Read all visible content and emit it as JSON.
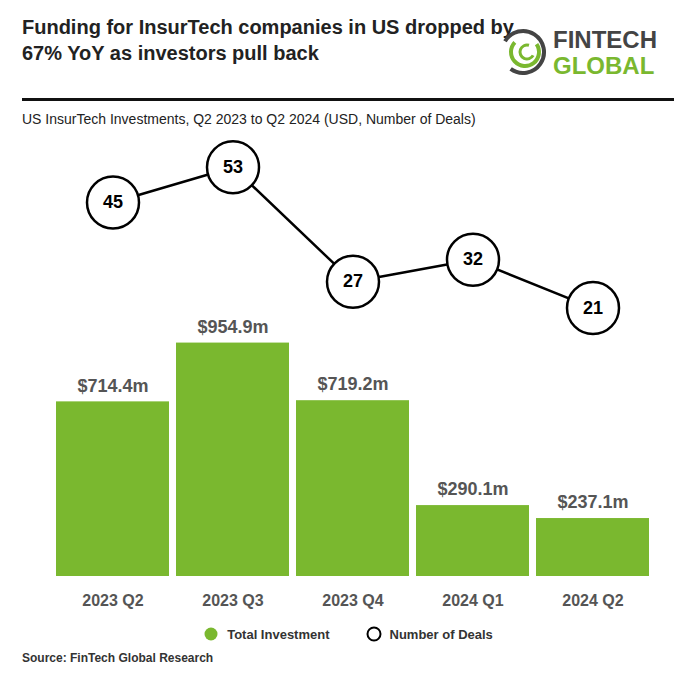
{
  "chart_data": {
    "type": "bar",
    "title": "Funding for InsurTech companies in US dropped by 67% YoY as investors pull back",
    "subtitle": "US InsurTech Investments, Q2 2023 to Q2 2024 (USD, Number of Deals)",
    "logo_text": "FINTECH GLOBAL",
    "source": "Source: FinTech Global Research",
    "categories": [
      "2023 Q2",
      "2023 Q3",
      "2023 Q4",
      "2024 Q1",
      "2024 Q2"
    ],
    "series": [
      {
        "name": "Total Investment",
        "type": "bar",
        "color": "#7ab82f",
        "values": [
          714.4,
          954.9,
          719.2,
          290.1,
          237.1
        ],
        "value_labels": [
          "$714.4m",
          "$954.9m",
          "$719.2m",
          "$290.1m",
          "$237.1m"
        ]
      },
      {
        "name": "Number of Deals",
        "type": "line",
        "marker": "circle",
        "color": "#000000",
        "axis": "y2",
        "values": [
          45,
          53,
          27,
          32,
          21
        ]
      }
    ],
    "ylim": [
      0,
      1800
    ],
    "y2lim": [
      -40,
      60
    ],
    "data_labels": true,
    "tick_labels": "x",
    "legend": "bottom"
  }
}
